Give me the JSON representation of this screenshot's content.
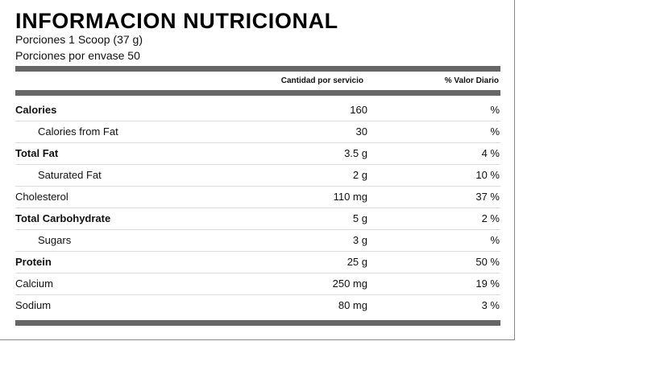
{
  "header": {
    "title": "INFORMACION NUTRICIONAL",
    "serving_size": "Porciones 1 Scoop (37 g)",
    "servings_per_container": "Porciones por envase 50"
  },
  "table": {
    "columns": [
      "Cantidad por servicio",
      "% Valor Diario"
    ],
    "rows": [
      [
        "Calories",
        "160",
        "%"
      ],
      [
        "Calories from Fat",
        "30",
        "%"
      ],
      [
        "Total Fat",
        "3.5 g",
        "4 %"
      ],
      [
        "Saturated Fat",
        "2 g",
        "10 %"
      ],
      [
        "Cholesterol",
        "110 mg",
        "37 %"
      ],
      [
        "Total Carbohydrate",
        "5 g",
        "2 %"
      ],
      [
        "Sugars",
        "3 g",
        "%"
      ],
      [
        "Protein",
        "25 g",
        "50 %"
      ],
      [
        "Calcium",
        "250 mg",
        "19 %"
      ],
      [
        "Sodium",
        "80 mg",
        "3 %"
      ]
    ]
  }
}
